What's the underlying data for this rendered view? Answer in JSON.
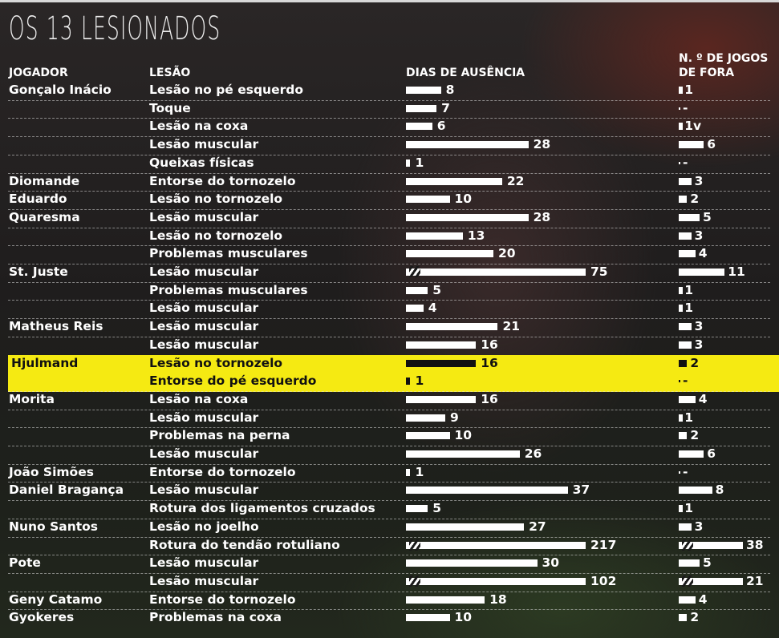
{
  "chart_data": {
    "type": "table",
    "title": "OS 13 LESIONADOS",
    "columns": [
      "JOGADOR",
      "LESÃO",
      "DIAS DE AUSÊNCIA",
      "N. º DE JOGOS DE FORA"
    ],
    "header_games_line1": "N. º DE JOGOS",
    "header_games_line2": "DE FORA",
    "highlight_color": "#f5ea12",
    "rows": [
      {
        "player": "Gonçalo Inácio",
        "injury": "Lesão no pé esquerdo",
        "days": 8,
        "games": "1"
      },
      {
        "player": "",
        "injury": "Toque",
        "days": 7,
        "games": "-"
      },
      {
        "player": "",
        "injury": "Lesão na coxa",
        "days": 6,
        "games": "1v"
      },
      {
        "player": "",
        "injury": "Lesão muscular",
        "days": 28,
        "games": "6"
      },
      {
        "player": "",
        "injury": "Queixas físicas",
        "days": 1,
        "games": "-"
      },
      {
        "player": "Diomande",
        "injury": "Entorse do tornozelo",
        "days": 22,
        "games": "3"
      },
      {
        "player": "Eduardo",
        "injury": "Lesão no tornozelo",
        "days": 10,
        "games": "2"
      },
      {
        "player": "Quaresma",
        "injury": "Lesão muscular",
        "days": 28,
        "games": "5"
      },
      {
        "player": "",
        "injury": "Lesão no tornozelo",
        "days": 13,
        "games": "3"
      },
      {
        "player": "",
        "injury": "Problemas musculares",
        "days": 20,
        "games": "4"
      },
      {
        "player": "St. Juste",
        "injury": "Lesão muscular",
        "days": 75,
        "games": "11"
      },
      {
        "player": "",
        "injury": "Problemas musculares",
        "days": 5,
        "games": "1"
      },
      {
        "player": "",
        "injury": "Lesão muscular",
        "days": 4,
        "games": "1"
      },
      {
        "player": "Matheus Reis",
        "injury": "Lesão muscular",
        "days": 21,
        "games": "3"
      },
      {
        "player": "",
        "injury": "Lesão muscular",
        "days": 16,
        "games": "3"
      },
      {
        "player": "Hjulmand",
        "injury": "Lesão no tornozelo",
        "days": 16,
        "games": "2",
        "highlight": true
      },
      {
        "player": "",
        "injury": "Entorse do pé esquerdo",
        "days": 1,
        "games": "-",
        "highlight": true
      },
      {
        "player": "Morita",
        "injury": "Lesão na coxa",
        "days": 16,
        "games": "4"
      },
      {
        "player": "",
        "injury": "Lesão muscular",
        "days": 9,
        "games": "1"
      },
      {
        "player": "",
        "injury": "Problemas na perna",
        "days": 10,
        "games": "2"
      },
      {
        "player": "",
        "injury": "Lesão muscular",
        "days": 26,
        "games": "6"
      },
      {
        "player": "João Simões",
        "injury": "Entorse do tornozelo",
        "days": 1,
        "games": "-"
      },
      {
        "player": "Daniel Bragança",
        "injury": "Lesão muscular",
        "days": 37,
        "games": "8"
      },
      {
        "player": "",
        "injury": "Rotura dos ligamentos cruzados",
        "days": 5,
        "games": "1"
      },
      {
        "player": "Nuno Santos",
        "injury": "Lesão no joelho",
        "days": 27,
        "games": "3"
      },
      {
        "player": "",
        "injury": "Rotura do tendão rotuliano",
        "days": 217,
        "games": "38"
      },
      {
        "player": "Pote",
        "injury": "Lesão muscular",
        "days": 30,
        "games": "5"
      },
      {
        "player": "",
        "injury": "Lesão muscular",
        "days": 102,
        "games": "21"
      },
      {
        "player": "Geny Catamo",
        "injury": "Entorse do tornozelo",
        "days": 18,
        "games": "4"
      },
      {
        "player": "Gyokeres",
        "injury": "Problemas na coxa",
        "days": 10,
        "games": "2"
      }
    ]
  }
}
